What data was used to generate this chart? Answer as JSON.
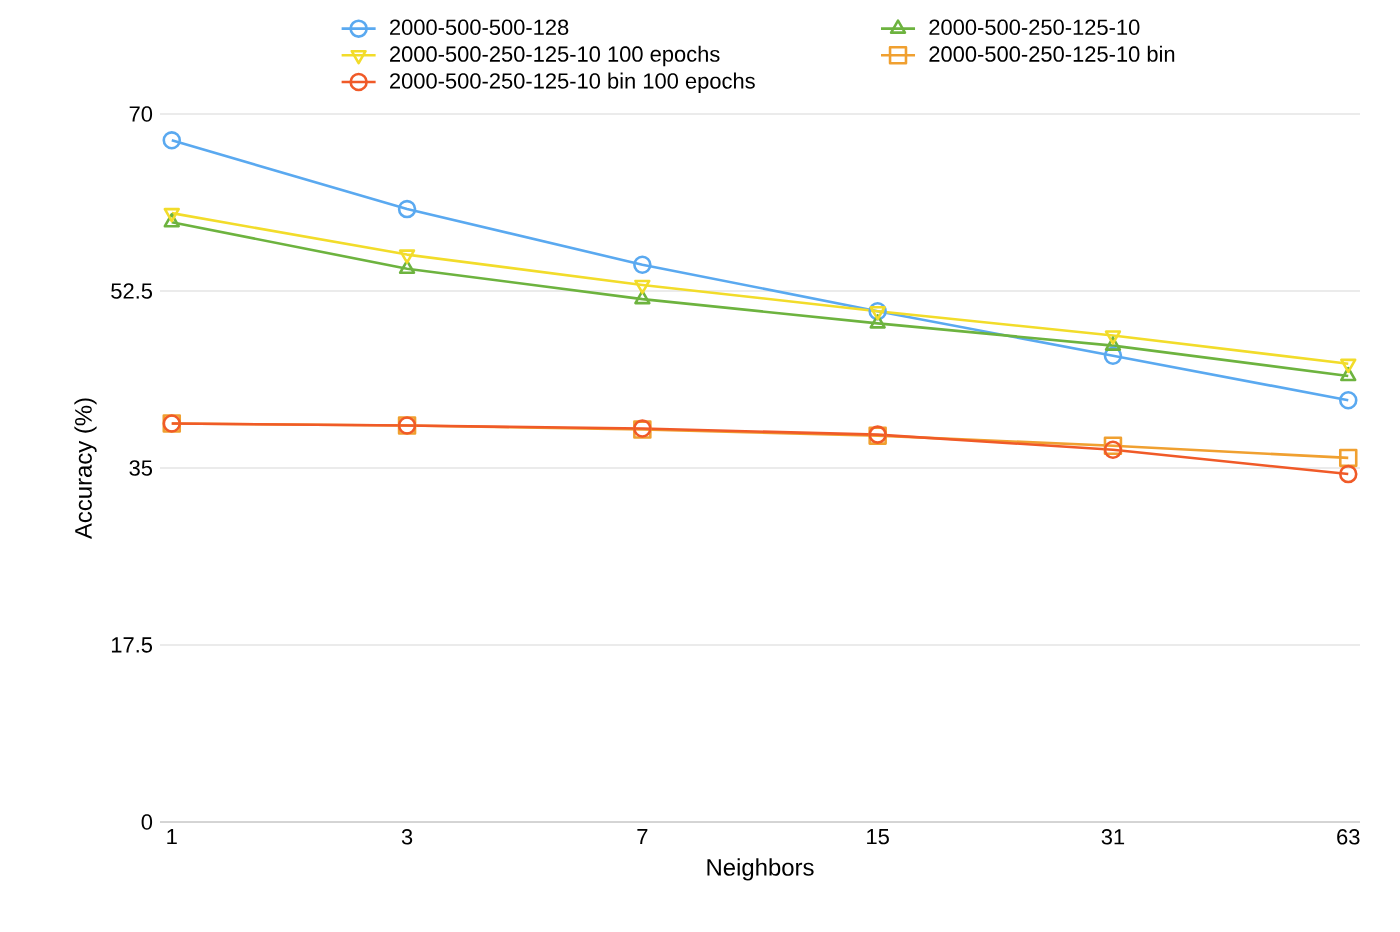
{
  "chart_data": {
    "type": "line",
    "xlabel": "Neighbors",
    "ylabel": "Accuracy (%)",
    "categories": [
      "1",
      "3",
      "7",
      "15",
      "31",
      "63"
    ],
    "series": [
      {
        "name": "2000-500-500-128",
        "color": "#5aa9f0",
        "marker": "circle",
        "values": [
          67.4,
          60.6,
          55.1,
          50.5,
          46.1,
          41.7
        ]
      },
      {
        "name": "2000-500-250-125-10",
        "color": "#6db33f",
        "marker": "triangle",
        "values": [
          59.3,
          54.7,
          51.7,
          49.3,
          47.1,
          44.1
        ]
      },
      {
        "name": "2000-500-250-125-10 100 epochs",
        "color": "#f2dc2a",
        "marker": "triangle-down",
        "values": [
          60.2,
          56.1,
          53.1,
          50.5,
          48.1,
          45.3
        ]
      },
      {
        "name": "2000-500-250-125-10 bin",
        "color": "#f0a030",
        "marker": "square",
        "values": [
          39.4,
          39.2,
          38.8,
          38.2,
          37.2,
          36.0
        ]
      },
      {
        "name": "2000-500-250-125-10 bin 100 epochs",
        "color": "#f05a28",
        "marker": "circle",
        "values": [
          39.4,
          39.2,
          38.9,
          38.3,
          36.8,
          34.4
        ]
      }
    ],
    "ylim": [
      0,
      70
    ],
    "yticks": [
      0,
      17.5,
      35,
      52.5,
      70
    ],
    "grid": "y",
    "legend": "top",
    "line_style": "solid"
  }
}
